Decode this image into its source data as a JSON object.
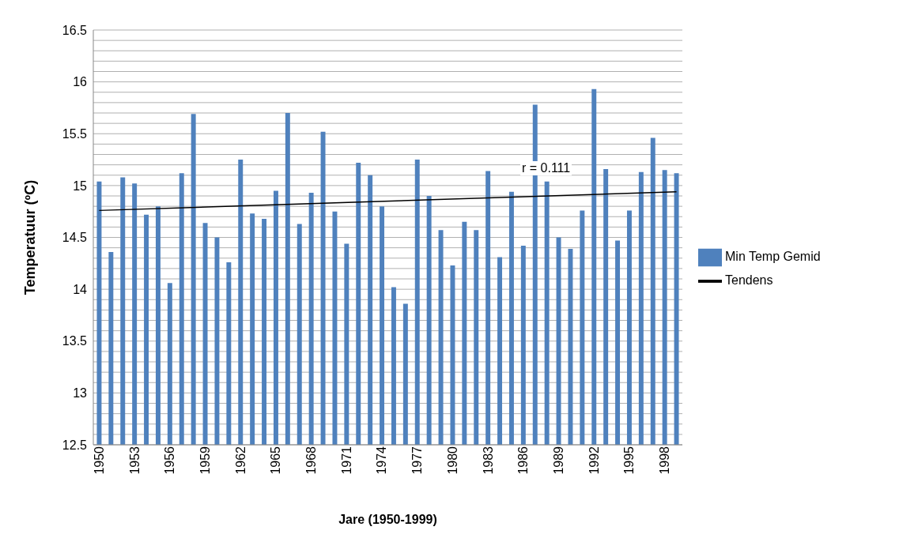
{
  "chart_data": {
    "type": "bar",
    "xlabel": "Jare (1950-1999)",
    "ylabel": "Temperatuur (ºC)",
    "categories": [
      "1950",
      null,
      null,
      "1953",
      null,
      null,
      "1956",
      null,
      null,
      "1959",
      null,
      null,
      "1962",
      null,
      null,
      "1965",
      null,
      null,
      "1968",
      null,
      null,
      "1971",
      null,
      null,
      "1974",
      null,
      null,
      "1977",
      null,
      null,
      "1980",
      null,
      null,
      "1983",
      null,
      null,
      "1986",
      null,
      null,
      "1989",
      null,
      null,
      "1992",
      null,
      null,
      "1995",
      null,
      null,
      "1998",
      null
    ],
    "series": [
      {
        "name": "Min Temp Gemid",
        "color": "#4f81bd",
        "values": [
          15.04,
          14.36,
          15.08,
          15.02,
          14.72,
          14.8,
          14.06,
          15.12,
          15.69,
          14.64,
          14.5,
          14.26,
          15.25,
          14.73,
          14.68,
          14.95,
          15.7,
          14.63,
          14.93,
          15.52,
          14.75,
          14.44,
          15.22,
          15.1,
          14.8,
          14.02,
          13.86,
          15.25,
          14.9,
          14.57,
          14.23,
          14.65,
          14.57,
          15.14,
          14.31,
          14.94,
          14.42,
          15.78,
          15.04,
          14.5,
          14.39,
          14.76,
          15.93,
          15.16,
          14.47,
          14.76,
          15.13,
          15.46,
          15.15,
          15.12
        ]
      },
      {
        "name": "Tendens",
        "type": "line",
        "color": "#000000",
        "values": [
          14.76,
          null,
          null,
          null,
          null,
          null,
          null,
          null,
          null,
          null,
          null,
          null,
          null,
          null,
          null,
          null,
          null,
          null,
          null,
          null,
          null,
          null,
          null,
          null,
          null,
          null,
          null,
          null,
          null,
          null,
          null,
          null,
          null,
          null,
          null,
          null,
          null,
          null,
          null,
          null,
          null,
          null,
          null,
          null,
          null,
          null,
          null,
          null,
          null,
          14.94
        ]
      }
    ],
    "ylim": [
      12.5,
      16.5
    ],
    "yticks": [
      12.5,
      {
        "value": 12.6,
        "label": null
      },
      {
        "value": 12.7,
        "label": null
      },
      {
        "value": 12.8,
        "label": null
      },
      {
        "value": 12.9,
        "label": null
      },
      13,
      {
        "value": 13.1,
        "label": null
      },
      {
        "value": 13.2,
        "label": null
      },
      {
        "value": 13.3,
        "label": null
      },
      {
        "value": 13.4,
        "label": null
      },
      13.5,
      {
        "value": 13.6,
        "label": null
      },
      {
        "value": 13.7,
        "label": null
      },
      {
        "value": 13.8,
        "label": null
      },
      {
        "value": 13.9,
        "label": null
      },
      14,
      {
        "value": 14.1,
        "label": null
      },
      {
        "value": 14.2,
        "label": null
      },
      {
        "value": 14.3,
        "label": null
      },
      {
        "value": 14.4,
        "label": null
      },
      14.5,
      {
        "value": 14.6,
        "label": null
      },
      {
        "value": 14.7,
        "label": null
      },
      {
        "value": 14.8,
        "label": null
      },
      {
        "value": 14.9,
        "label": null
      },
      15,
      {
        "value": 15.1,
        "label": null
      },
      {
        "value": 15.2,
        "label": null
      },
      {
        "value": 15.3,
        "label": null
      },
      {
        "value": 15.4,
        "label": null
      },
      15.5,
      {
        "value": 15.6,
        "label": null
      },
      {
        "value": 15.7,
        "label": null
      },
      {
        "value": 15.8,
        "label": null
      },
      {
        "value": 15.9,
        "label": null
      },
      16,
      {
        "value": 16.1,
        "label": null
      },
      {
        "value": 16.2,
        "label": null
      },
      {
        "value": 16.3,
        "label": null
      },
      {
        "value": 16.4,
        "label": null
      },
      16.5
    ],
    "grid": "y",
    "legend": "right",
    "annotations": [
      "r  = 0.111"
    ]
  }
}
